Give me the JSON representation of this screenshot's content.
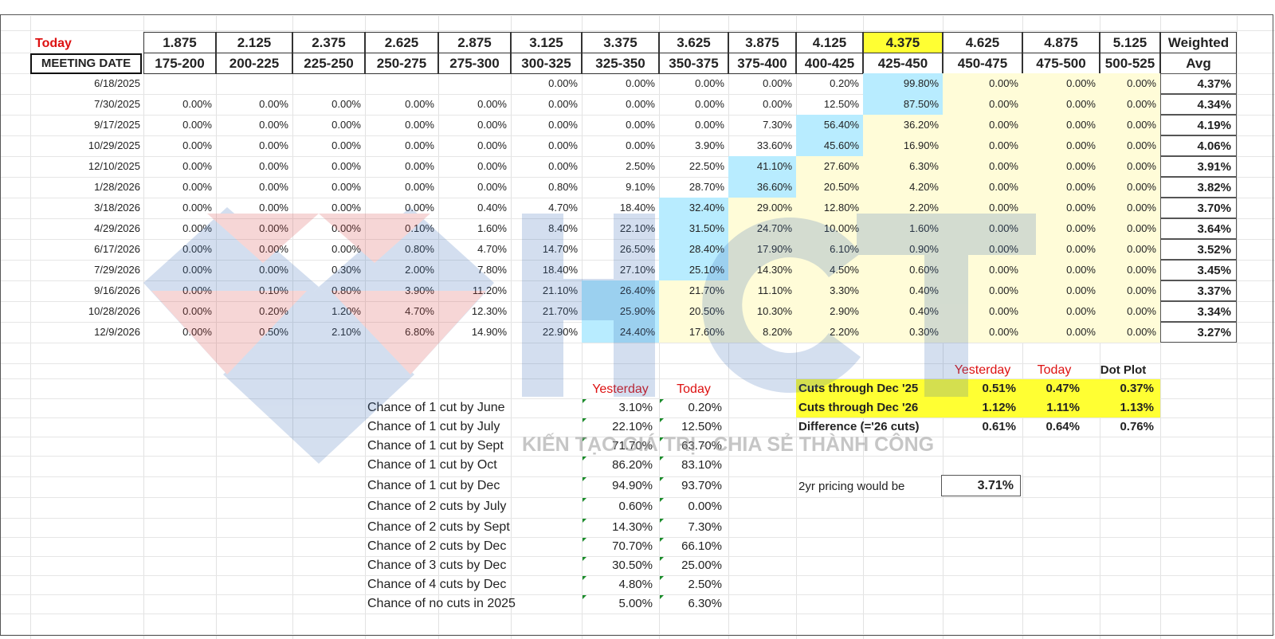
{
  "header": {
    "today_label": "Today",
    "meeting_label": "MEETING DATE",
    "rates": [
      "1.875",
      "2.125",
      "2.375",
      "2.625",
      "2.875",
      "3.125",
      "3.375",
      "3.625",
      "3.875",
      "4.125",
      "4.375",
      "4.625",
      "4.875",
      "5.125"
    ],
    "ranges": [
      "175-200",
      "200-225",
      "225-250",
      "250-275",
      "275-300",
      "300-325",
      "325-350",
      "350-375",
      "375-400",
      "400-425",
      "425-450",
      "450-475",
      "475-500",
      "500-525"
    ],
    "weighted_label": "Weighted",
    "avg_label": "Avg"
  },
  "rows": [
    {
      "date": "6/18/2025",
      "vals": [
        "",
        "",
        "",
        "",
        "",
        "0.00%",
        "0.00%",
        "0.00%",
        "0.00%",
        "0.20%",
        "99.80%",
        "0.00%",
        "0.00%",
        "0.00%"
      ],
      "avg": "4.37%"
    },
    {
      "date": "7/30/2025",
      "vals": [
        "0.00%",
        "0.00%",
        "0.00%",
        "0.00%",
        "0.00%",
        "0.00%",
        "0.00%",
        "0.00%",
        "0.00%",
        "12.50%",
        "87.50%",
        "0.00%",
        "0.00%",
        "0.00%"
      ],
      "avg": "4.34%"
    },
    {
      "date": "9/17/2025",
      "vals": [
        "0.00%",
        "0.00%",
        "0.00%",
        "0.00%",
        "0.00%",
        "0.00%",
        "0.00%",
        "0.00%",
        "7.30%",
        "56.40%",
        "36.20%",
        "0.00%",
        "0.00%",
        "0.00%"
      ],
      "avg": "4.19%"
    },
    {
      "date": "10/29/2025",
      "vals": [
        "0.00%",
        "0.00%",
        "0.00%",
        "0.00%",
        "0.00%",
        "0.00%",
        "0.00%",
        "3.90%",
        "33.60%",
        "45.60%",
        "16.90%",
        "0.00%",
        "0.00%",
        "0.00%"
      ],
      "avg": "4.06%"
    },
    {
      "date": "12/10/2025",
      "vals": [
        "0.00%",
        "0.00%",
        "0.00%",
        "0.00%",
        "0.00%",
        "0.00%",
        "2.50%",
        "22.50%",
        "41.10%",
        "27.60%",
        "6.30%",
        "0.00%",
        "0.00%",
        "0.00%"
      ],
      "avg": "3.91%"
    },
    {
      "date": "1/28/2026",
      "vals": [
        "0.00%",
        "0.00%",
        "0.00%",
        "0.00%",
        "0.00%",
        "0.80%",
        "9.10%",
        "28.70%",
        "36.60%",
        "20.50%",
        "4.20%",
        "0.00%",
        "0.00%",
        "0.00%"
      ],
      "avg": "3.82%"
    },
    {
      "date": "3/18/2026",
      "vals": [
        "0.00%",
        "0.00%",
        "0.00%",
        "0.00%",
        "0.40%",
        "4.70%",
        "18.40%",
        "32.40%",
        "29.00%",
        "12.80%",
        "2.20%",
        "0.00%",
        "0.00%",
        "0.00%"
      ],
      "avg": "3.70%"
    },
    {
      "date": "4/29/2026",
      "vals": [
        "0.00%",
        "0.00%",
        "0.00%",
        "0.10%",
        "1.60%",
        "8.40%",
        "22.10%",
        "31.50%",
        "24.70%",
        "10.00%",
        "1.60%",
        "0.00%",
        "0.00%",
        "0.00%"
      ],
      "avg": "3.64%"
    },
    {
      "date": "6/17/2026",
      "vals": [
        "0.00%",
        "0.00%",
        "0.00%",
        "0.80%",
        "4.70%",
        "14.70%",
        "26.50%",
        "28.40%",
        "17.90%",
        "6.10%",
        "0.90%",
        "0.00%",
        "0.00%",
        "0.00%"
      ],
      "avg": "3.52%"
    },
    {
      "date": "7/29/2026",
      "vals": [
        "0.00%",
        "0.00%",
        "0.30%",
        "2.00%",
        "7.80%",
        "18.40%",
        "27.10%",
        "25.10%",
        "14.30%",
        "4.50%",
        "0.60%",
        "0.00%",
        "0.00%",
        "0.00%"
      ],
      "avg": "3.45%"
    },
    {
      "date": "9/16/2026",
      "vals": [
        "0.00%",
        "0.10%",
        "0.80%",
        "3.90%",
        "11.20%",
        "21.10%",
        "26.40%",
        "21.70%",
        "11.10%",
        "3.30%",
        "0.40%",
        "0.00%",
        "0.00%",
        "0.00%"
      ],
      "avg": "3.37%"
    },
    {
      "date": "10/28/2026",
      "vals": [
        "0.00%",
        "0.20%",
        "1.20%",
        "4.70%",
        "12.30%",
        "21.70%",
        "25.90%",
        "20.50%",
        "10.30%",
        "2.90%",
        "0.40%",
        "0.00%",
        "0.00%",
        "0.00%"
      ],
      "avg": "3.34%"
    },
    {
      "date": "12/9/2026",
      "vals": [
        "0.00%",
        "0.50%",
        "2.10%",
        "6.80%",
        "14.90%",
        "22.90%",
        "24.40%",
        "17.60%",
        "8.20%",
        "2.20%",
        "0.30%",
        "0.00%",
        "0.00%",
        "0.00%"
      ],
      "avg": "3.27%"
    }
  ],
  "highlights": {
    "current_col": 10,
    "cream_from_col": 11,
    "blue_cells": [
      [
        0,
        10
      ],
      [
        1,
        10
      ],
      [
        2,
        9
      ],
      [
        3,
        9
      ],
      [
        4,
        8
      ],
      [
        5,
        8
      ],
      [
        6,
        7
      ],
      [
        7,
        7
      ],
      [
        8,
        7
      ],
      [
        9,
        7
      ],
      [
        10,
        6
      ],
      [
        11,
        6
      ],
      [
        12,
        6
      ]
    ]
  },
  "chances": {
    "yesterday_label": "Yesterday",
    "today_label": "Today",
    "rows": [
      {
        "label": "Chance of 1 cut by June",
        "yesterday": "3.10%",
        "today": "0.20%"
      },
      {
        "label": "Chance of 1 cut by July",
        "yesterday": "22.10%",
        "today": "12.50%"
      },
      {
        "label": "Chance of 1 cut by Sept",
        "yesterday": "71.70%",
        "today": "63.70%"
      },
      {
        "label": "Chance of 1 cut by Oct",
        "yesterday": "86.20%",
        "today": "83.10%"
      },
      {
        "label": "Chance of 1 cut by Dec",
        "yesterday": "94.90%",
        "today": "93.70%"
      },
      {
        "label": "Chance of 2 cuts by July",
        "yesterday": "0.60%",
        "today": "0.00%"
      },
      {
        "label": "Chance of 2 cuts by Sept",
        "yesterday": "14.30%",
        "today": "7.30%"
      },
      {
        "label": "Chance of 2 cuts by Dec",
        "yesterday": "70.70%",
        "today": "66.10%"
      },
      {
        "label": "Chance of 3 cuts by Dec",
        "yesterday": "30.50%",
        "today": "25.00%"
      },
      {
        "label": "Chance of 4 cuts by Dec",
        "yesterday": "4.80%",
        "today": "2.50%"
      },
      {
        "label": "Chance of no cuts in 2025",
        "yesterday": "5.00%",
        "today": "6.30%"
      }
    ]
  },
  "cuts": {
    "yesterday_label": "Yesterday",
    "today_label": "Today",
    "dot_plot_label": "Dot Plot",
    "rows": [
      {
        "label": "Cuts through Dec '25",
        "yesterday": "0.51%",
        "today": "0.47%",
        "dot": "0.37%"
      },
      {
        "label": "Cuts through Dec '26",
        "yesterday": "1.12%",
        "today": "1.11%",
        "dot": "1.13%"
      },
      {
        "label": "Difference (='26 cuts)",
        "yesterday": "0.61%",
        "today": "0.64%",
        "dot": "0.76%"
      }
    ],
    "pricing_label": "2yr pricing would be",
    "pricing_value": "3.71%"
  },
  "watermark": {
    "logo_text": "HCT",
    "slogan": "KIẾN TẠO GIÁ TRỊ - CHIA SẺ THÀNH CÔNG",
    "colors": {
      "blue": "#3a6fb8",
      "red": "#d94a4a"
    }
  }
}
